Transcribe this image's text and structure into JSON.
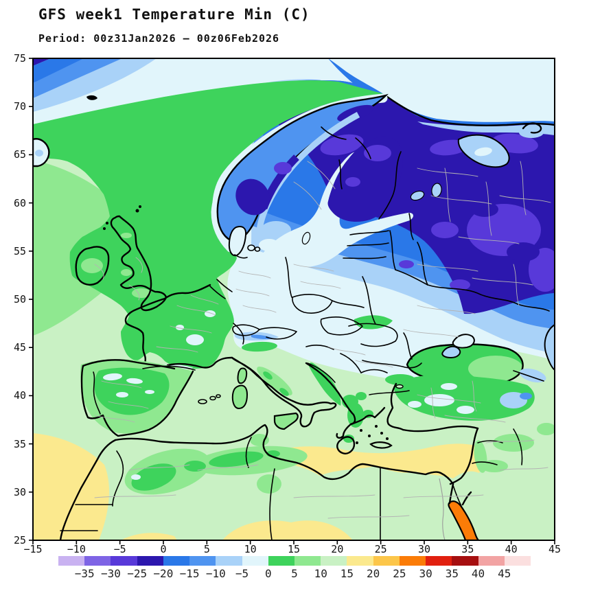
{
  "header": {
    "title": "GFS week1 Temperature Min (C)",
    "subtitle": "Period: 00z31Jan2026 – 00z06Feb2026"
  },
  "axes": {
    "x_label_unit": "longitude_deg",
    "y_label_unit": "latitude_deg",
    "x_ticks": [
      "−15",
      "−10",
      "−5",
      "0",
      "5",
      "10",
      "15",
      "20",
      "25",
      "30",
      "35",
      "40",
      "45"
    ],
    "y_ticks": [
      "75",
      "70",
      "65",
      "60",
      "55",
      "50",
      "45",
      "40",
      "35",
      "30",
      "25"
    ]
  },
  "colorbar": {
    "boundary_labels": [
      "−35",
      "−30",
      "−25",
      "−20",
      "−15",
      "−10",
      "−5",
      "0",
      "5",
      "10",
      "15",
      "20",
      "25",
      "30",
      "35",
      "40",
      "45"
    ],
    "colors": [
      "#c9b2f1",
      "#7e64e5",
      "#5839d9",
      "#2c17ae",
      "#2a78e8",
      "#4f94f0",
      "#a9d2f8",
      "#e1f5fb",
      "#3ed35c",
      "#8fe890",
      "#c9f1c4",
      "#fbe98e",
      "#fcc64a",
      "#fb7c07",
      "#e1200f",
      "#a60f10",
      "#f2a3a3",
      "#fbdfdf"
    ],
    "units": "C"
  },
  "map": {
    "region": "Europe / North Africa",
    "field": "Minimum temperature, weekly (filled contours)"
  }
}
